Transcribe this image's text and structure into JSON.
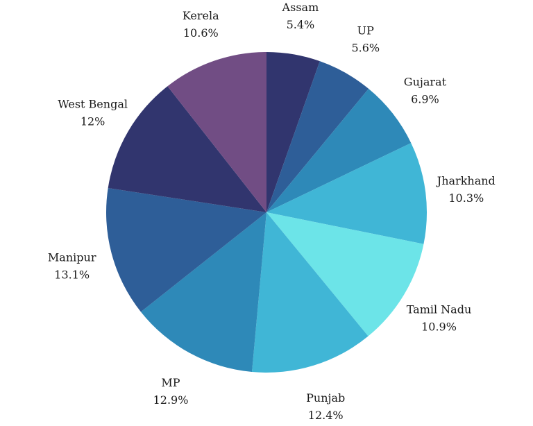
{
  "chart_data": {
    "type": "pie",
    "title": "",
    "slices": [
      {
        "label": "Assam",
        "value": 5.4,
        "value_label": "5.4%",
        "color": "#31356e"
      },
      {
        "label": "UP",
        "value": 5.6,
        "value_label": "5.6%",
        "color": "#2e5e98"
      },
      {
        "label": "Gujarat",
        "value": 6.9,
        "value_label": "6.9%",
        "color": "#2e89b8"
      },
      {
        "label": "Jharkhand",
        "value": 10.3,
        "value_label": "10.3%",
        "color": "#40b6d6"
      },
      {
        "label": "Tamil Nadu",
        "value": 10.9,
        "value_label": "10.9%",
        "color": "#6ce4e8"
      },
      {
        "label": "Punjab",
        "value": 12.4,
        "value_label": "12.4%",
        "color": "#40b6d6"
      },
      {
        "label": "MP",
        "value": 12.9,
        "value_label": "12.9%",
        "color": "#2e89b8"
      },
      {
        "label": "Manipur",
        "value": 13.1,
        "value_label": "13.1%",
        "color": "#2e5e98"
      },
      {
        "label": "West Bengal",
        "value": 12,
        "value_label": "12%",
        "color": "#31356e"
      },
      {
        "label": "Kerela",
        "value": 10.6,
        "value_label": "10.6%",
        "color": "#714d84"
      }
    ]
  }
}
